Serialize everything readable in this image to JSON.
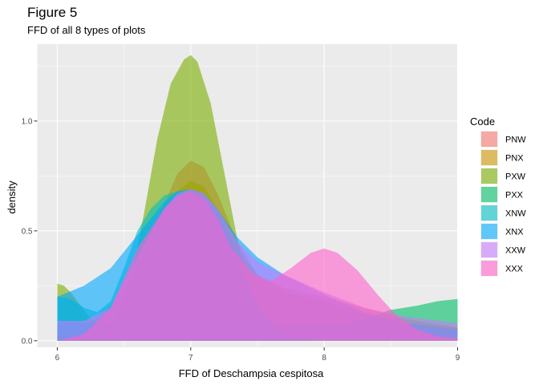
{
  "chart_data": {
    "type": "area",
    "title": "Figure 5",
    "subtitle": "FFD of all 8 types of plots",
    "xlabel": "FFD of Deschampsia cespitosa",
    "ylabel": "density",
    "xlim": [
      5.85,
      9.0
    ],
    "ylim": [
      -0.03,
      1.35
    ],
    "x_ticks": [
      6,
      7,
      8,
      9
    ],
    "y_ticks": [
      0.0,
      0.5,
      1.0
    ],
    "y_tick_labels": [
      "0.0",
      "0.5",
      "1.0"
    ],
    "grid": true,
    "legend_title": "Code",
    "legend_position": "right",
    "series": [
      {
        "name": "PNW",
        "color": "#F8766D",
        "x": [
          6.0,
          6.2,
          6.4,
          6.6,
          6.8,
          6.9,
          7.0,
          7.1,
          7.2,
          7.35,
          7.5,
          7.7,
          8.0,
          8.3,
          8.6,
          9.0
        ],
        "values": [
          0.01,
          0.05,
          0.15,
          0.34,
          0.62,
          0.76,
          0.82,
          0.79,
          0.67,
          0.45,
          0.3,
          0.22,
          0.18,
          0.12,
          0.08,
          0.06
        ]
      },
      {
        "name": "PNX",
        "color": "#CD9600",
        "x": [
          6.0,
          6.2,
          6.4,
          6.6,
          6.8,
          6.9,
          7.0,
          7.1,
          7.2,
          7.35,
          7.5,
          7.7,
          8.0,
          8.3,
          8.6,
          9.0
        ],
        "values": [
          0.02,
          0.06,
          0.16,
          0.33,
          0.56,
          0.68,
          0.73,
          0.7,
          0.6,
          0.42,
          0.3,
          0.24,
          0.2,
          0.15,
          0.1,
          0.06
        ]
      },
      {
        "name": "PXW",
        "color": "#7CAE00",
        "x": [
          6.0,
          6.05,
          6.1,
          6.15,
          6.25,
          6.35,
          6.45,
          6.55,
          6.65,
          6.75,
          6.85,
          6.95,
          7.0,
          7.05,
          7.15,
          7.25,
          7.35,
          7.45,
          7.55,
          7.65,
          7.75,
          7.85,
          8.0
        ],
        "values": [
          0.26,
          0.25,
          0.22,
          0.18,
          0.1,
          0.06,
          0.11,
          0.28,
          0.58,
          0.92,
          1.17,
          1.28,
          1.3,
          1.27,
          1.08,
          0.77,
          0.46,
          0.23,
          0.1,
          0.05,
          0.02,
          0.01,
          0.0
        ]
      },
      {
        "name": "PXX",
        "color": "#00BE67",
        "x": [
          6.0,
          6.2,
          6.4,
          6.6,
          6.8,
          7.0,
          7.2,
          7.4,
          7.6,
          7.8,
          8.0,
          8.2,
          8.35,
          8.5,
          8.7,
          8.85,
          9.0
        ],
        "values": [
          0.08,
          0.08,
          0.08,
          0.08,
          0.08,
          0.08,
          0.08,
          0.08,
          0.08,
          0.08,
          0.08,
          0.08,
          0.11,
          0.14,
          0.16,
          0.18,
          0.19
        ]
      },
      {
        "name": "XNW",
        "color": "#00BFC4",
        "x": [
          6.0,
          6.1,
          6.2,
          6.3,
          6.4,
          6.5,
          6.6,
          6.7,
          6.8,
          6.9,
          7.0,
          7.1,
          7.2,
          7.3,
          7.4,
          7.5,
          7.6,
          7.7,
          7.8,
          8.0
        ],
        "values": [
          0.2,
          0.19,
          0.15,
          0.13,
          0.18,
          0.33,
          0.5,
          0.6,
          0.66,
          0.68,
          0.68,
          0.65,
          0.58,
          0.45,
          0.3,
          0.17,
          0.08,
          0.03,
          0.01,
          0.0
        ]
      },
      {
        "name": "XNX",
        "color": "#00A9FF",
        "x": [
          6.0,
          6.2,
          6.4,
          6.6,
          6.8,
          6.9,
          7.0,
          7.1,
          7.2,
          7.35,
          7.5,
          7.7,
          8.0,
          8.3,
          8.6,
          9.0
        ],
        "values": [
          0.2,
          0.25,
          0.33,
          0.48,
          0.63,
          0.68,
          0.69,
          0.67,
          0.6,
          0.47,
          0.38,
          0.3,
          0.21,
          0.13,
          0.08,
          0.05
        ]
      },
      {
        "name": "XXW",
        "color": "#C77CFF",
        "x": [
          6.0,
          6.2,
          6.4,
          6.6,
          6.8,
          6.9,
          7.0,
          7.1,
          7.2,
          7.35,
          7.5,
          7.7,
          8.0,
          8.3,
          8.6,
          9.0
        ],
        "values": [
          0.09,
          0.09,
          0.15,
          0.38,
          0.6,
          0.67,
          0.69,
          0.67,
          0.6,
          0.45,
          0.36,
          0.3,
          0.22,
          0.15,
          0.11,
          0.08
        ]
      },
      {
        "name": "XXX",
        "color": "#FF61CC",
        "x": [
          6.0,
          6.2,
          6.4,
          6.6,
          6.8,
          6.9,
          7.0,
          7.1,
          7.2,
          7.3,
          7.45,
          7.6,
          7.75,
          7.9,
          8.0,
          8.1,
          8.25,
          8.4,
          8.55,
          8.7,
          8.85,
          9.0
        ],
        "values": [
          0.0,
          0.03,
          0.15,
          0.42,
          0.6,
          0.66,
          0.68,
          0.65,
          0.56,
          0.43,
          0.31,
          0.27,
          0.33,
          0.4,
          0.42,
          0.4,
          0.32,
          0.21,
          0.11,
          0.05,
          0.02,
          0.01
        ]
      }
    ]
  }
}
